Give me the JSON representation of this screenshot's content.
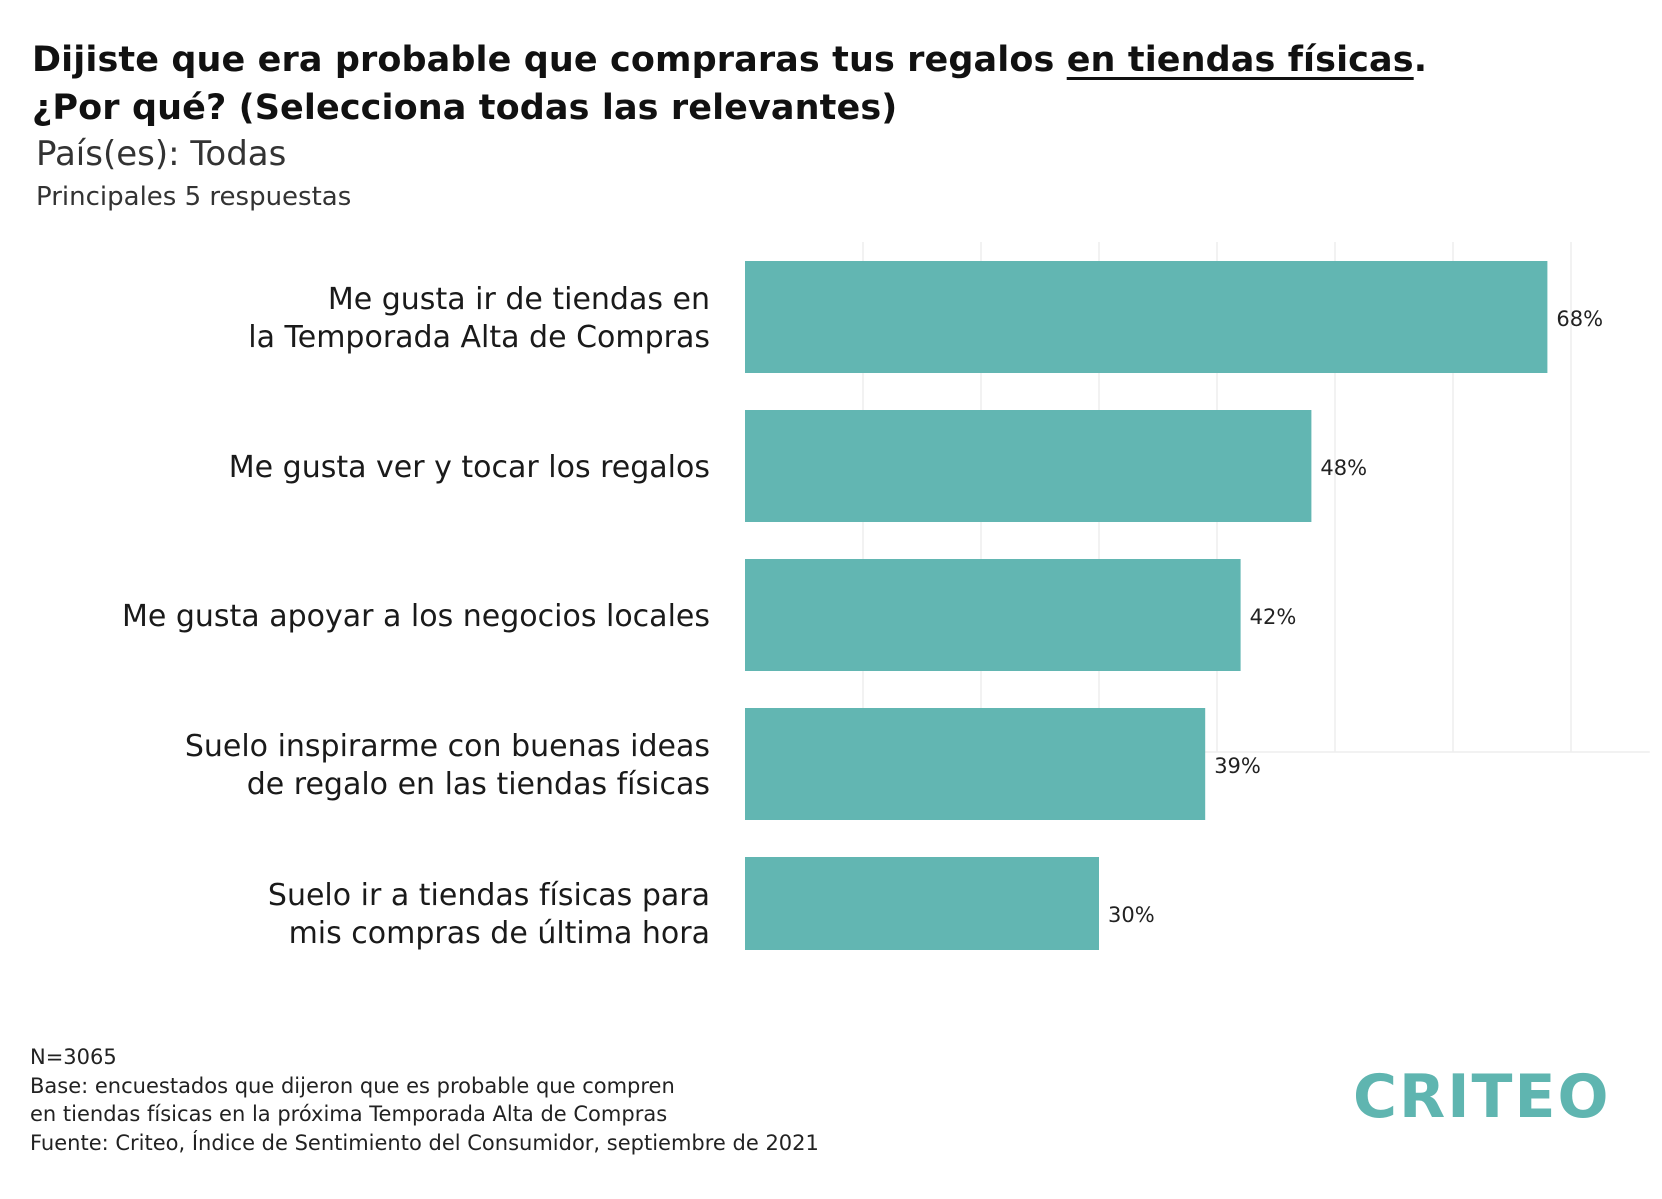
{
  "title": {
    "line1_pre": "Dijiste que era probable que compraras tus regalos ",
    "line1_underlined": "en tiendas físicas",
    "line1_post": ".",
    "line2": "¿Por qué? (Selecciona todas las relevantes)"
  },
  "subtitle": "País(es): Todas",
  "subnote": "Principales 5 respuestas",
  "chart_data": {
    "type": "bar",
    "orientation": "horizontal",
    "categories": [
      [
        "Me gusta ir de tiendas en ",
        "la Temporada Alta de Compras"
      ],
      [
        "Me gusta ver y tocar los regalos"
      ],
      [
        "Me gusta apoyar a los negocios locales"
      ],
      [
        "Suelo inspirarme con buenas ideas",
        "de regalo en las tiendas físicas"
      ],
      [
        "Suelo ir a tiendas físicas para",
        "mis compras de última hora"
      ]
    ],
    "values": [
      68,
      48,
      42,
      39,
      30
    ],
    "value_labels": [
      "68%",
      "48%",
      "42%",
      "39%",
      "30%"
    ],
    "xlim": [
      0,
      76
    ],
    "grid": true,
    "bar_color": "#62b6b2",
    "grid_color": "#eeeeee"
  },
  "footer": {
    "n": "N=3065",
    "base_line1": "Base: encuestados que dijeron que es probable que compren",
    "base_line2": "en tiendas físicas en la próxima Temporada Alta de Compras",
    "source": "Fuente: Criteo, Índice de Sentimiento del Consumidor, septiembre de 2021"
  },
  "logo": "CRITEO"
}
